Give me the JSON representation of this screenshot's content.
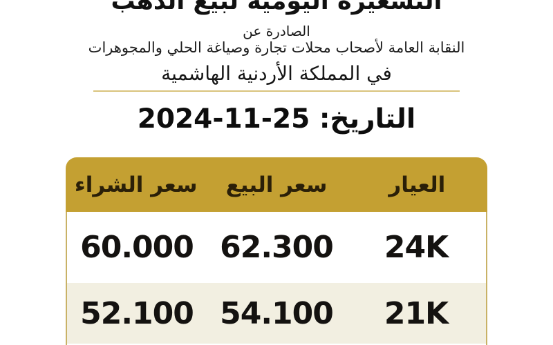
{
  "header": {
    "title": "التسعيرة اليومية لبيع الذهب",
    "issued_by": "الصادرة عن",
    "syndicate": "النقابة العامة لأصحاب محلات تجارة وصياغة الحلي والمجوهرات",
    "country": "في المملكة الأردنية الهاشمية"
  },
  "date": {
    "label": "التاريخ:",
    "value": "25-11-2024"
  },
  "table": {
    "columns": [
      "العيار",
      "سعر البيع",
      "سعر الشراء"
    ],
    "rows": [
      {
        "karat": "24K",
        "sell": "62.300",
        "buy": "60.000"
      },
      {
        "karat": "21K",
        "sell": "54.100",
        "buy": "52.100"
      }
    ]
  },
  "colors": {
    "header_gold": "#c4a032",
    "row_cream": "#f2efe1",
    "border_gold": "#c9b266",
    "divider_gold": "#d9c37c",
    "text": "#141210"
  }
}
